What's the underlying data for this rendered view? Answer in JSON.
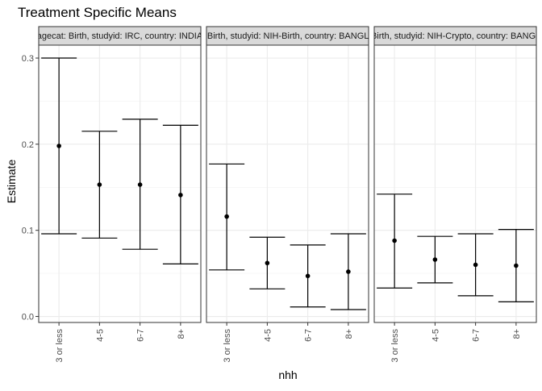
{
  "chart_data": {
    "type": "errorbar",
    "title": "Treatment Specific Means",
    "xlabel": "nhh",
    "ylabel": "Estimate",
    "categories": [
      "3 or less",
      "4-5",
      "6-7",
      "8+"
    ],
    "y_ticks": [
      "0.0",
      "0.1",
      "0.2",
      "0.3"
    ],
    "ylim": [
      -0.007,
      0.315
    ],
    "grid": true,
    "panels": [
      {
        "label": "agecat: Birth, studyid: IRC, country: INDIA",
        "points": [
          {
            "x": "3 or less",
            "estimate": 0.198,
            "lower": 0.096,
            "upper": 0.3
          },
          {
            "x": "4-5",
            "estimate": 0.153,
            "lower": 0.091,
            "upper": 0.215
          },
          {
            "x": "6-7",
            "estimate": 0.153,
            "lower": 0.078,
            "upper": 0.229
          },
          {
            "x": "8+",
            "estimate": 0.141,
            "lower": 0.061,
            "upper": 0.222
          }
        ]
      },
      {
        "label": "agecat: Birth, studyid: NIH-Birth, country: BANGLADESH",
        "points": [
          {
            "x": "3 or less",
            "estimate": 0.116,
            "lower": 0.054,
            "upper": 0.177
          },
          {
            "x": "4-5",
            "estimate": 0.062,
            "lower": 0.032,
            "upper": 0.092
          },
          {
            "x": "6-7",
            "estimate": 0.047,
            "lower": 0.011,
            "upper": 0.083
          },
          {
            "x": "8+",
            "estimate": 0.052,
            "lower": 0.008,
            "upper": 0.096
          }
        ]
      },
      {
        "label": "agecat: Birth, studyid: NIH-Crypto, country: BANGLADESH",
        "points": [
          {
            "x": "3 or less",
            "estimate": 0.088,
            "lower": 0.033,
            "upper": 0.142
          },
          {
            "x": "4-5",
            "estimate": 0.066,
            "lower": 0.039,
            "upper": 0.093
          },
          {
            "x": "6-7",
            "estimate": 0.06,
            "lower": 0.024,
            "upper": 0.096
          },
          {
            "x": "8+",
            "estimate": 0.059,
            "lower": 0.017,
            "upper": 0.101
          }
        ]
      }
    ]
  }
}
